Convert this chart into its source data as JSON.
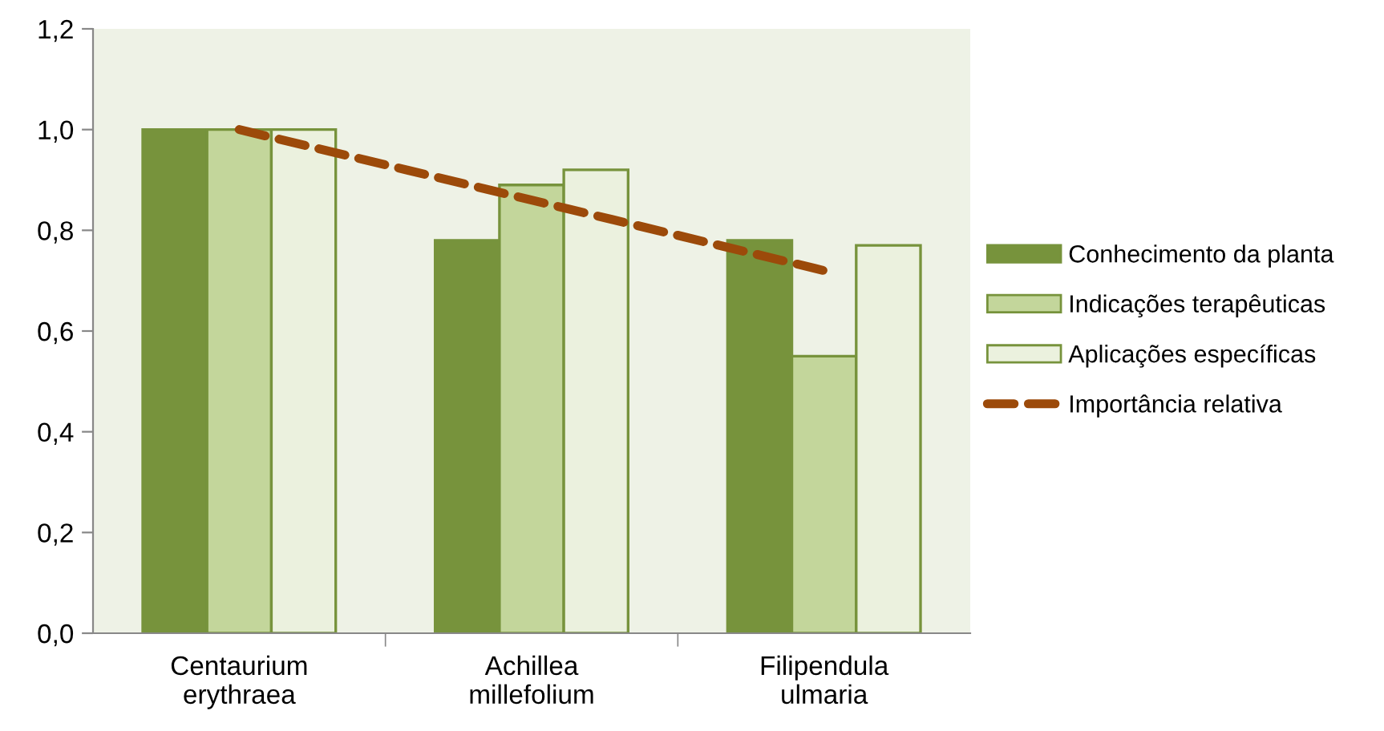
{
  "chart_data": {
    "type": "bar",
    "categories": [
      "Centaurium\nerythraea",
      "Achillea\nmillefolium",
      "Filipendula\nulmaria"
    ],
    "series": [
      {
        "name": "Conhecimento da planta",
        "color": "#77933c",
        "values": [
          1.0,
          0.78,
          0.78
        ]
      },
      {
        "name": "Indicações terapêuticas",
        "color": "#c3d69b",
        "values": [
          1.0,
          0.89,
          0.55
        ]
      },
      {
        "name": "Aplicações específicas",
        "color": "#ebf1de",
        "values": [
          1.0,
          0.92,
          0.77
        ]
      },
      {
        "name": "Importância relativa",
        "color": "#9c4a0a",
        "type": "line",
        "line_style": "dashed",
        "values": [
          1.0,
          0.86,
          0.72
        ]
      }
    ],
    "ylim": [
      0,
      1.2
    ],
    "yticks": [
      {
        "value": 0,
        "label": "0,0"
      },
      {
        "value": 0.2,
        "label": "0,2"
      },
      {
        "value": 0.4,
        "label": "0,4"
      },
      {
        "value": 0.6,
        "label": "0,6"
      },
      {
        "value": 0.8,
        "label": "0,8"
      },
      {
        "value": 1.0,
        "label": "1,0"
      },
      {
        "value": 1.2,
        "label": "1,2"
      }
    ],
    "grid": false,
    "legend": "right"
  }
}
